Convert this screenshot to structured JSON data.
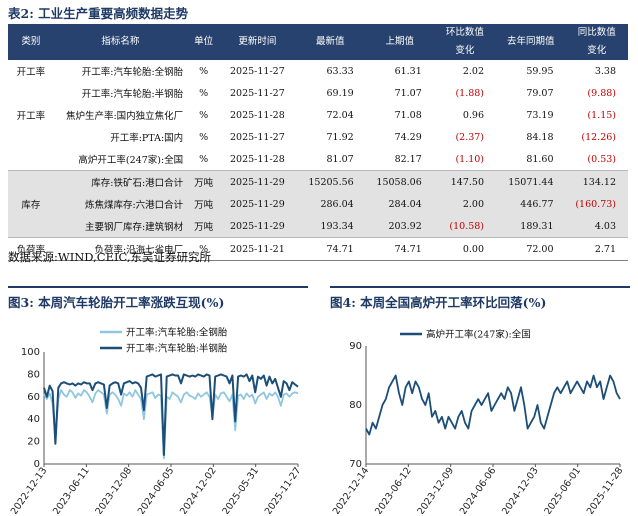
{
  "table_title": "表2: 工业生产重要高频数据走势",
  "headers": [
    "类别",
    "指标名称",
    "单位",
    "更新时间",
    "最新值",
    "上期值",
    "环比数值\n变化",
    "去年同期值",
    "同比数值\n变化"
  ],
  "rows": [
    {
      "cat": "开工率",
      "name": "开工率:汽车轮胎:全钢胎",
      "unit": "%",
      "date": "2025-11-27",
      "latest": "63.33",
      "prev": "61.31",
      "mom": "2.02",
      "yago": "59.95",
      "yoy": "3.38"
    },
    {
      "cat": "",
      "name": "开工率:汽车轮胎:半钢胎",
      "unit": "%",
      "date": "2025-11-27",
      "latest": "69.19",
      "prev": "71.07",
      "mom": "(1.88)",
      "yago": "79.07",
      "yoy": "(9.88)"
    },
    {
      "cat": "",
      "name": "焦炉生产率:国内独立焦化厂",
      "unit": "%",
      "date": "2025-11-28",
      "latest": "72.04",
      "prev": "71.08",
      "mom": "0.96",
      "yago": "73.19",
      "yoy": "(1.15)"
    },
    {
      "cat": "",
      "name": "开工率:PTA:国内",
      "unit": "%",
      "date": "2025-11-27",
      "latest": "71.92",
      "prev": "74.29",
      "mom": "(2.37)",
      "yago": "84.18",
      "yoy": "(12.26)"
    },
    {
      "cat": "",
      "name": "高炉开工率(247家):全国",
      "unit": "%",
      "date": "2025-11-28",
      "latest": "81.07",
      "prev": "82.17",
      "mom": "(1.10)",
      "yago": "81.60",
      "yoy": "(0.53)"
    },
    {
      "cat": "",
      "name": "库存:铁矿石:港口合计",
      "unit": "万吨",
      "date": "2025-11-29",
      "latest": "15205.56",
      "prev": "15058.06",
      "mom": "147.50",
      "yago": "15071.44",
      "yoy": "134.12"
    },
    {
      "cat": "库存",
      "name": "炼焦煤库存:六港口合计",
      "unit": "万吨",
      "date": "2025-11-29",
      "latest": "286.04",
      "prev": "284.04",
      "mom": "2.00",
      "yago": "446.77",
      "yoy": "(160.73)"
    },
    {
      "cat": "",
      "name": "主要钢厂库存:建筑钢材",
      "unit": "万吨",
      "date": "2025-11-29",
      "latest": "193.34",
      "prev": "203.92",
      "mom": "(10.58)",
      "yago": "189.31",
      "yoy": "4.03"
    },
    {
      "cat": "负荷率",
      "name": "负荷率:沿海七省电厂",
      "unit": "%",
      "date": "2025-11-21",
      "latest": "74.71",
      "prev": "74.71",
      "mom": "0.00",
      "yago": "72.00",
      "yoy": "2.71"
    }
  ],
  "cat_first_group_label": "开工率",
  "source": "数据来源:WIND,CEIC,东吴证券研究所",
  "fig3_title": "图3: 本周汽车轮胎开工率涨跌互现(%)",
  "fig4_title": "图4: 本周全国高炉开工率环比回落(%)",
  "colors": {
    "header_bg": "#27426e",
    "negative": "#c00000",
    "title": "#1f3a64",
    "series_light": "#8fc6e0",
    "series_dark": "#1b4e79"
  },
  "chart_data": [
    {
      "type": "line",
      "ylim": [
        0,
        100
      ],
      "yticks": [
        0,
        20,
        40,
        60,
        80,
        100
      ],
      "x_tick_labels": [
        "2022-12-13",
        "2023-06-11",
        "2023-12-08",
        "2024-06-05",
        "2024-12-02",
        "2025-05-31",
        "2025-11-27"
      ],
      "series": [
        {
          "name": "开工率:汽车轮胎:全钢胎",
          "color": "#8fc6e0",
          "values": [
            62,
            58,
            63,
            54,
            22,
            58,
            66,
            62,
            60,
            66,
            64,
            59,
            63,
            61,
            66,
            64,
            60,
            55,
            63,
            66,
            64,
            62,
            45,
            62,
            64,
            62,
            58,
            52,
            63,
            61,
            64,
            60,
            66,
            62,
            58,
            40,
            62,
            63,
            64,
            59,
            62,
            61,
            5,
            60,
            58,
            64,
            62,
            60,
            55,
            62,
            64,
            61,
            60,
            58,
            63,
            60,
            62,
            64,
            60,
            42,
            62,
            58,
            63,
            64,
            60,
            56,
            62,
            30,
            61,
            62,
            58,
            63,
            60,
            62,
            54,
            60,
            62,
            64,
            58,
            63,
            61,
            64,
            60,
            52,
            62,
            63,
            60,
            63,
            64,
            63
          ]
        },
        {
          "name": "开工率:汽车轮胎:半钢胎",
          "color": "#1b4e79",
          "values": [
            68,
            60,
            70,
            65,
            18,
            68,
            72,
            73,
            72,
            71,
            72,
            70,
            72,
            71,
            73,
            72,
            72,
            66,
            72,
            73,
            72,
            71,
            50,
            70,
            72,
            73,
            72,
            62,
            72,
            73,
            74,
            72,
            73,
            72,
            68,
            48,
            78,
            79,
            80,
            78,
            79,
            80,
            8,
            78,
            79,
            80,
            79,
            79,
            72,
            80,
            79,
            78,
            79,
            78,
            80,
            79,
            78,
            80,
            79,
            40,
            78,
            79,
            80,
            79,
            78,
            72,
            79,
            38,
            78,
            79,
            78,
            80,
            74,
            79,
            64,
            78,
            76,
            79,
            70,
            78,
            72,
            76,
            68,
            60,
            74,
            72,
            66,
            73,
            71,
            69
          ]
        }
      ]
    },
    {
      "type": "line",
      "ylim": [
        70,
        90
      ],
      "yticks": [
        70,
        80,
        90
      ],
      "x_tick_labels": [
        "2022-12-14",
        "2023-06-12",
        "2023-12-09",
        "2024-06-06",
        "2024-12-03",
        "2025-06-01",
        "2025-11-28"
      ],
      "series": [
        {
          "name": "高炉开工率(247家):全国",
          "color": "#1b4e79",
          "values": [
            76,
            75,
            77,
            76,
            78,
            80,
            81,
            83,
            84,
            85,
            82,
            80,
            83,
            84,
            82,
            84,
            83,
            81,
            80,
            82,
            78,
            79,
            77,
            78,
            76,
            78,
            77,
            76,
            78,
            79,
            77,
            76,
            79,
            80,
            81,
            80,
            81,
            82,
            79,
            80,
            81,
            82,
            81,
            83,
            82,
            79,
            81,
            83,
            80,
            76,
            77,
            78,
            80,
            77,
            76,
            78,
            80,
            82,
            83,
            82,
            83,
            84,
            82,
            83,
            84,
            83,
            82,
            84,
            83,
            85,
            83,
            84,
            81,
            83,
            85,
            84,
            82,
            81
          ]
        }
      ]
    }
  ]
}
